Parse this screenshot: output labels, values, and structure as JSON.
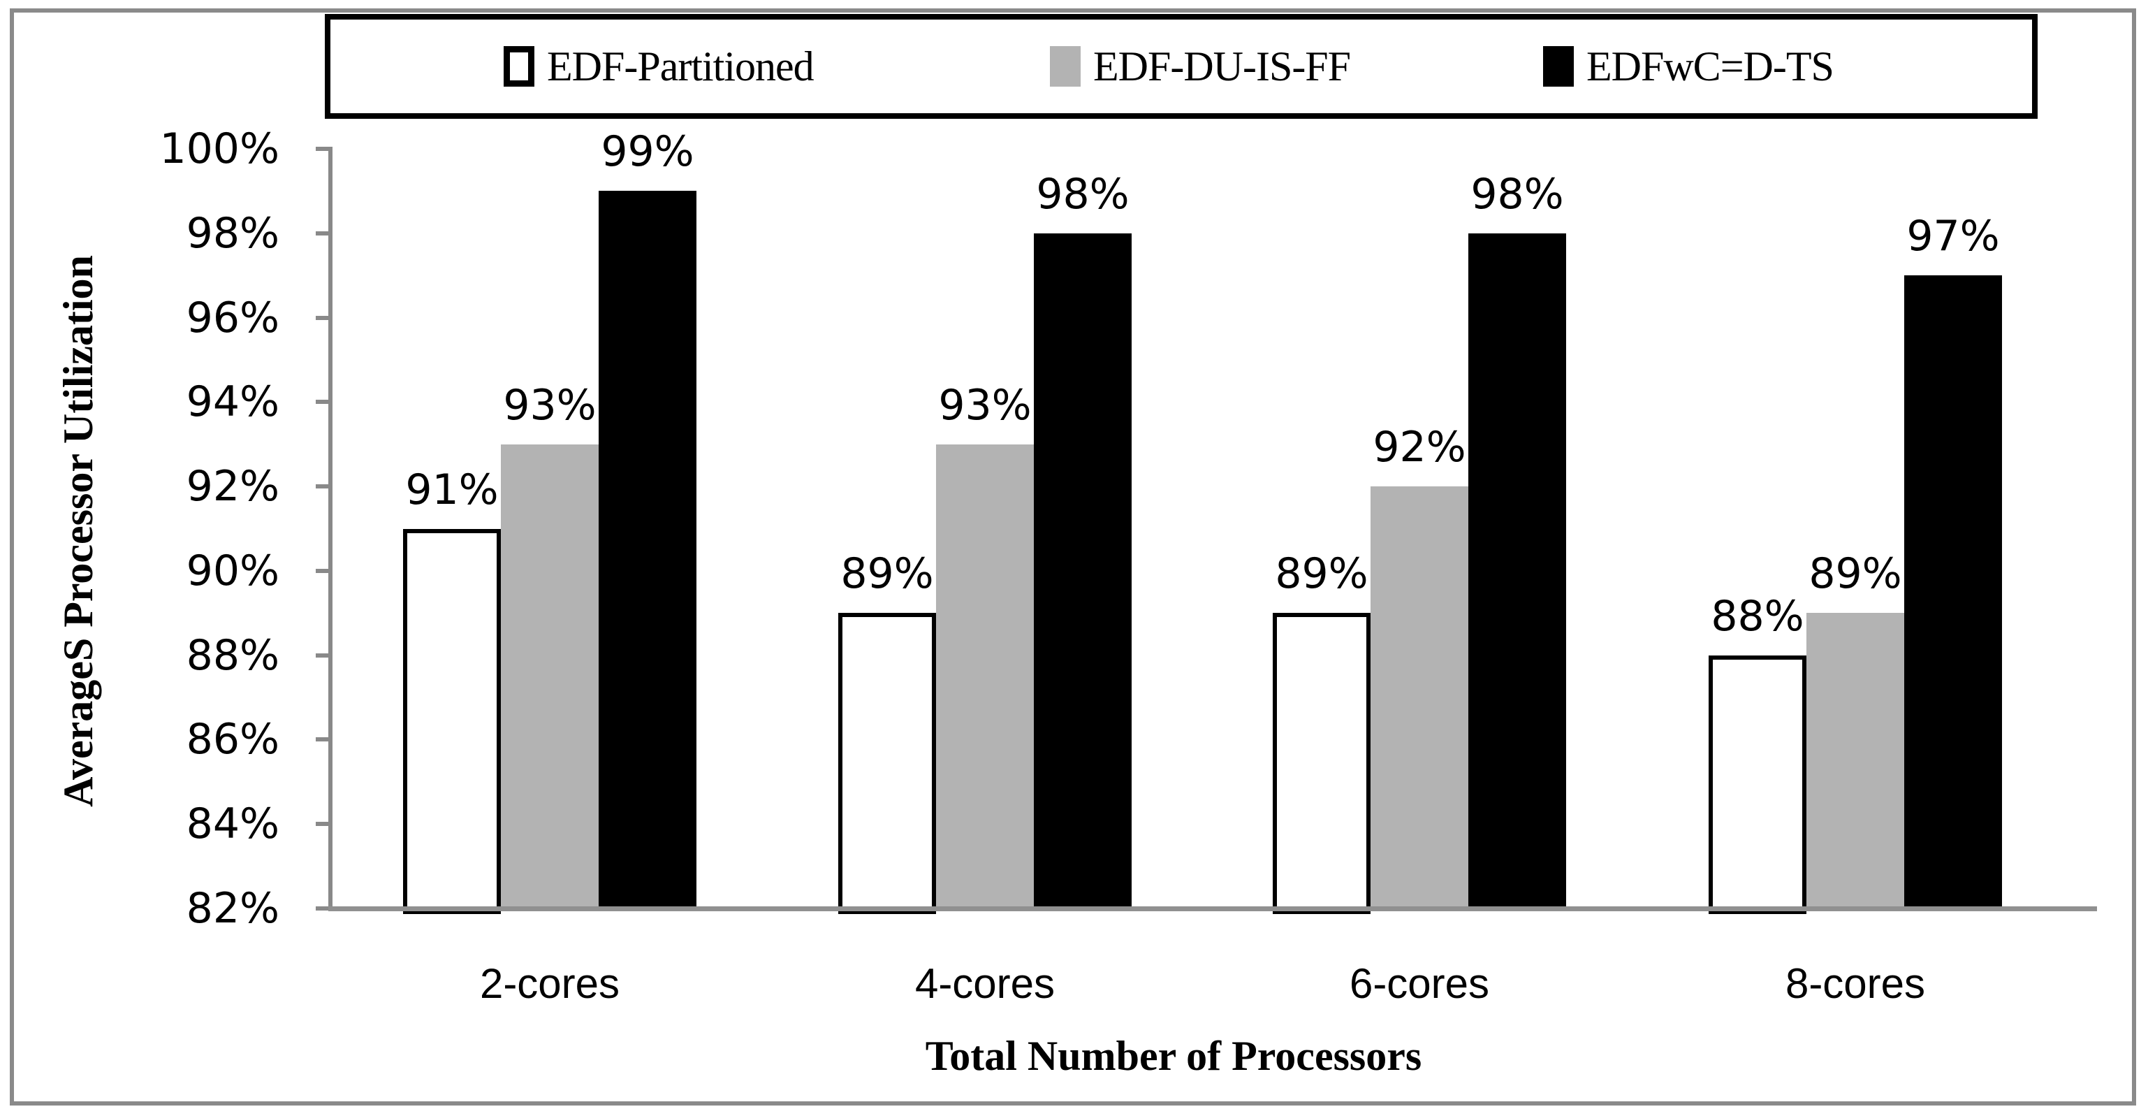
{
  "chart_data": {
    "type": "bar",
    "title": "",
    "xlabel": "Total Number of Processors",
    "ylabel": "AverageS Processor Utilization",
    "categories": [
      "2-cores",
      "4-cores",
      "6-cores",
      "8-cores"
    ],
    "series": [
      {
        "name": "EDF-Partitioned",
        "values": [
          91,
          89,
          89,
          88
        ],
        "labels": [
          "91%",
          "89%",
          "89%",
          "88%"
        ],
        "fill": "#ffffff",
        "border": "#000000"
      },
      {
        "name": "EDF-DU-IS-FF",
        "values": [
          93,
          93,
          92,
          89
        ],
        "labels": [
          "93%",
          "93%",
          "92%",
          "89%"
        ],
        "fill": "#b3b3b3",
        "border": null
      },
      {
        "name": "EDFwC=D-TS",
        "values": [
          99,
          98,
          98,
          97
        ],
        "labels": [
          "99%",
          "98%",
          "98%",
          "97%"
        ],
        "fill": "#000000",
        "border": null
      }
    ],
    "ylim": [
      82,
      100
    ],
    "ytick_step": 2,
    "ytick_labels": [
      "82%",
      "84%",
      "86%",
      "88%",
      "90%",
      "92%",
      "94%",
      "96%",
      "98%",
      "100%"
    ],
    "grid": false,
    "legend_position": "top",
    "colors": {
      "axis_line": "#898989",
      "frame_border": "#8a8a8a",
      "legend_border": "#000000",
      "bar_white": "#ffffff",
      "bar_gray": "#b3b3b3",
      "bar_black": "#000000",
      "text": "#000000"
    }
  }
}
